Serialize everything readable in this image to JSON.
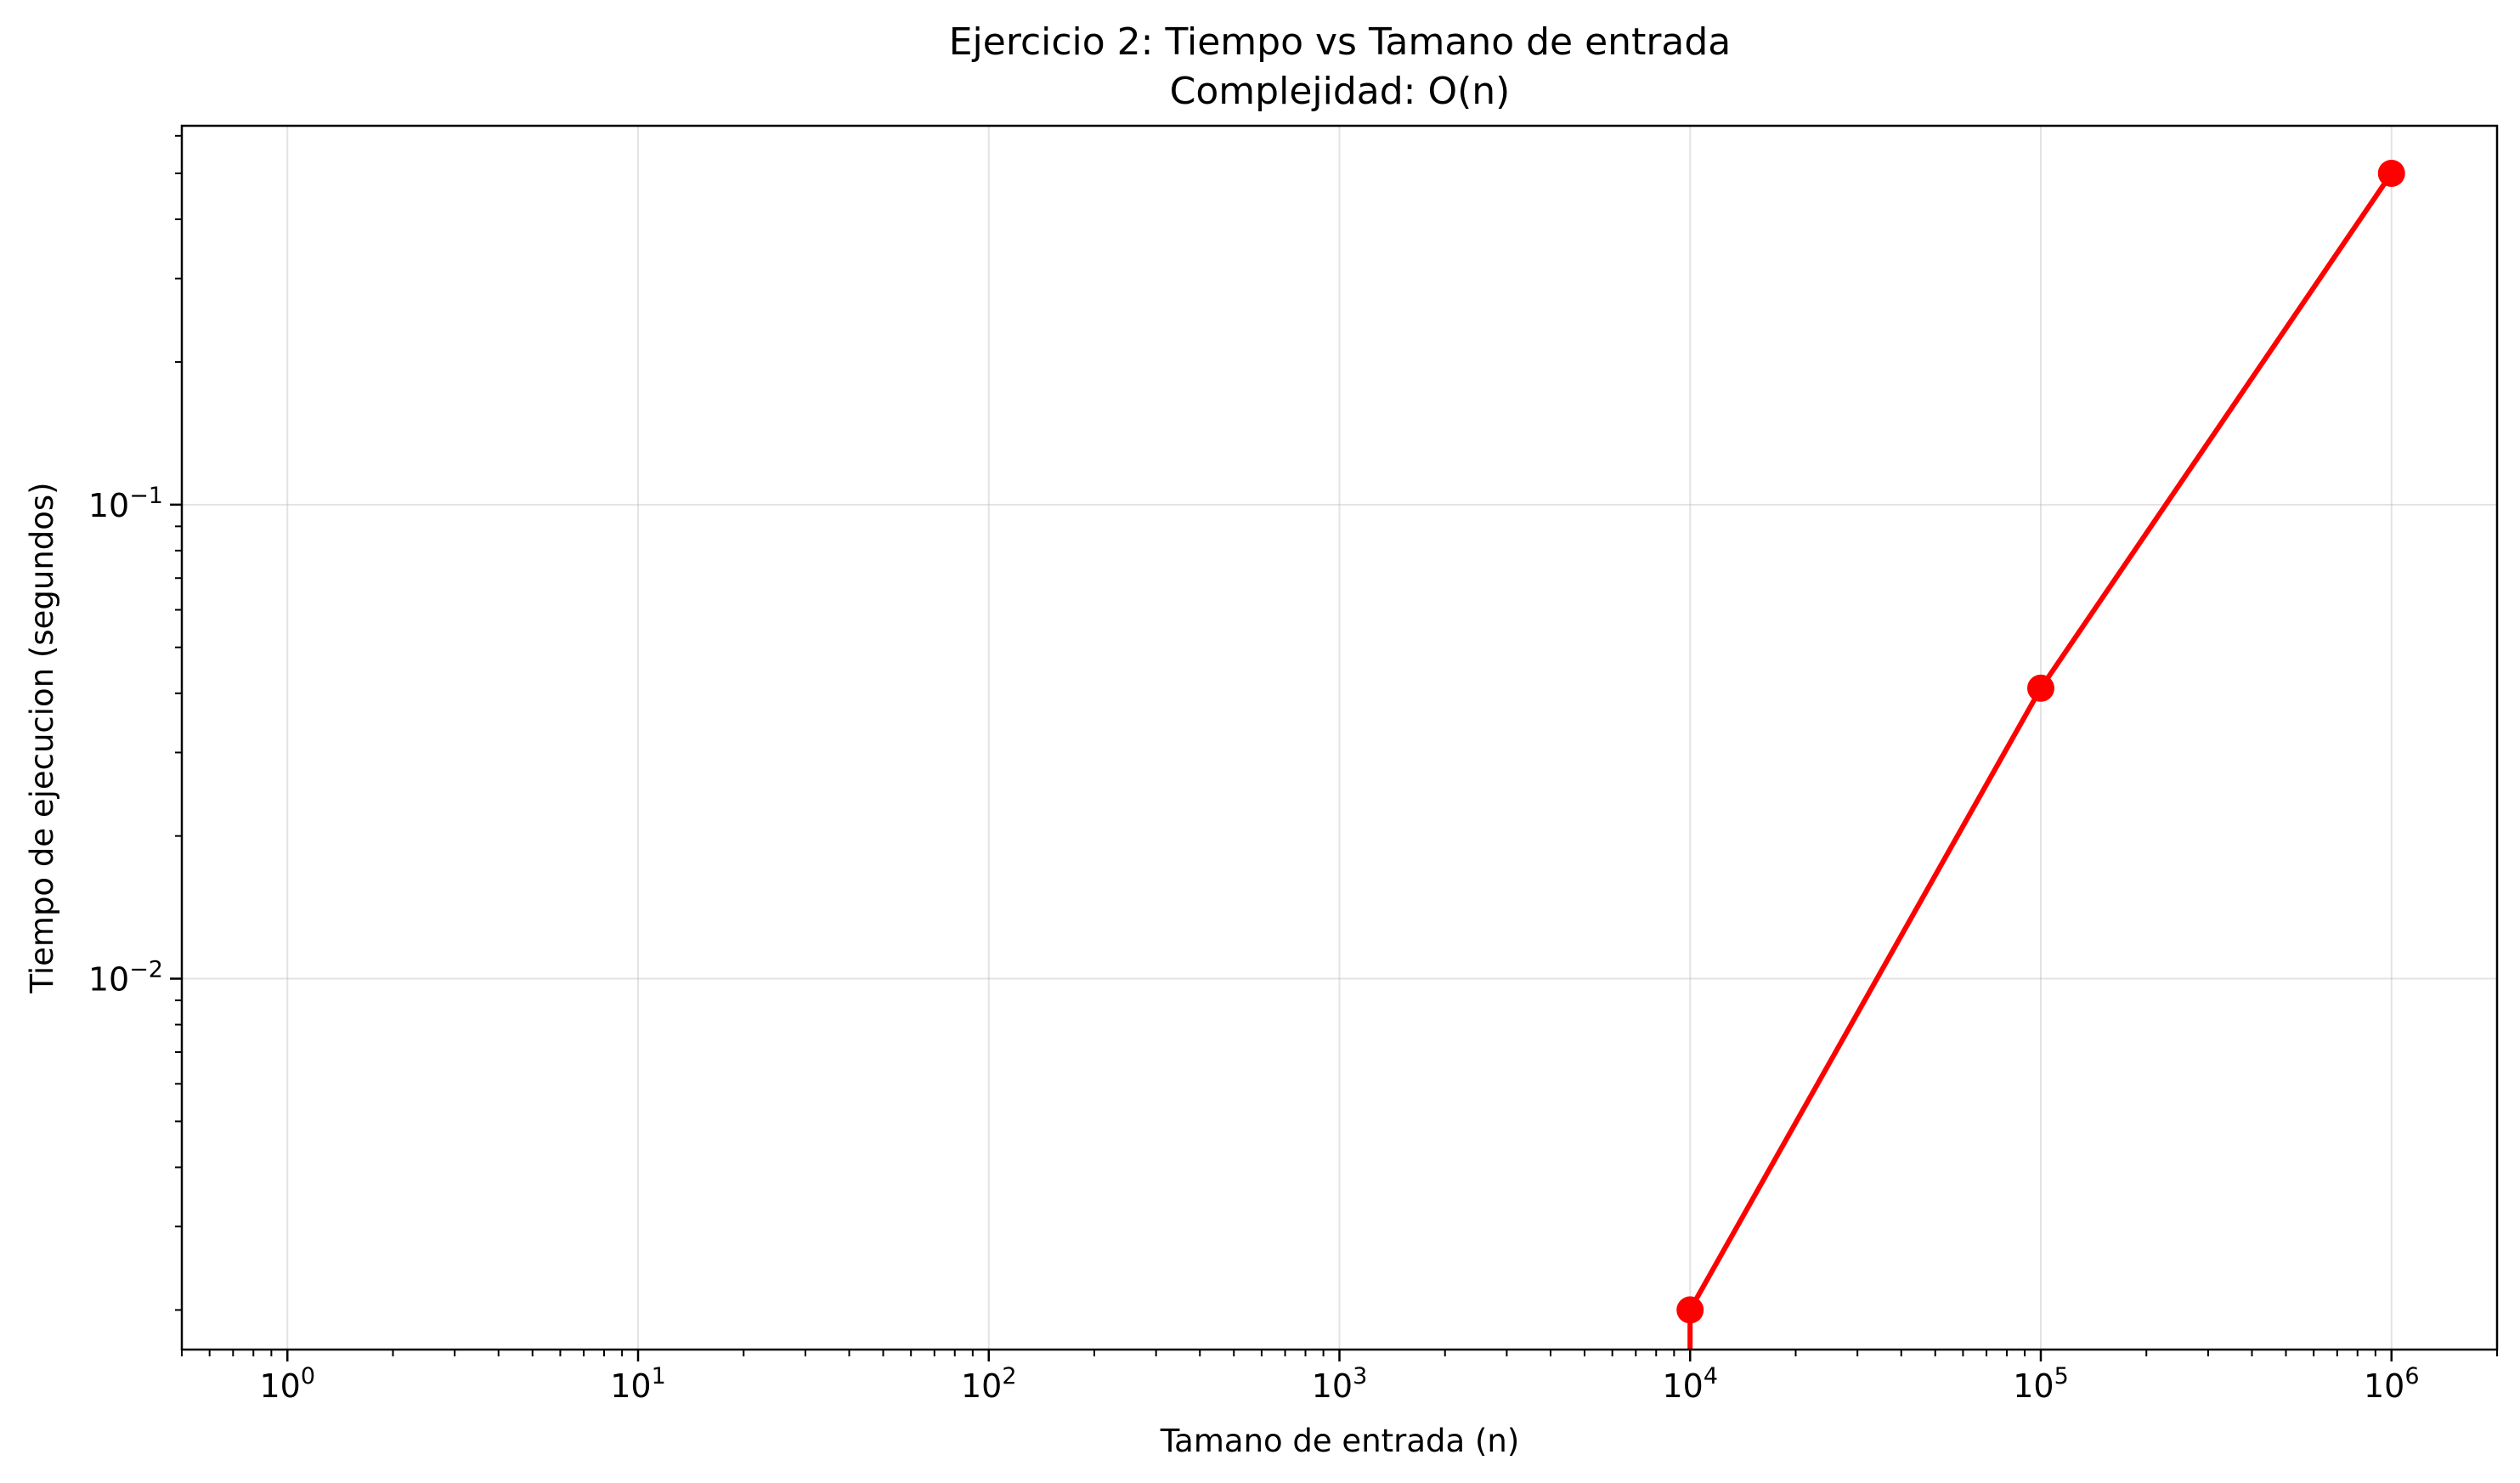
{
  "chart_data": {
    "type": "line",
    "title_line1": "Ejercicio 2: Tiempo vs Tamano de entrada",
    "title_line2": "Complejidad: O(n)",
    "xlabel": "Tamano de entrada (n)",
    "ylabel": "Tiempo de ejecucion (segundos)",
    "x_scale": "log",
    "y_scale": "log",
    "xlim": [
      0.5,
      2000000
    ],
    "ylim": [
      0.00165,
      0.63
    ],
    "x_ticks": [
      {
        "exp": "0",
        "value": 1
      },
      {
        "exp": "1",
        "value": 10
      },
      {
        "exp": "2",
        "value": 100
      },
      {
        "exp": "3",
        "value": 1000
      },
      {
        "exp": "4",
        "value": 10000
      },
      {
        "exp": "5",
        "value": 100000
      },
      {
        "exp": "6",
        "value": 1000000
      }
    ],
    "y_ticks": [
      {
        "exp": "−2",
        "value": 0.01
      },
      {
        "exp": "−1",
        "value": 0.1
      }
    ],
    "tick_base": "10",
    "grid": true,
    "series": [
      {
        "color": "#ff0000",
        "x": [
          1,
          10,
          100,
          1000,
          10000,
          100000,
          1000000
        ],
        "y": [
          0,
          0,
          0,
          0,
          0.002,
          0.041,
          0.5
        ]
      }
    ]
  }
}
